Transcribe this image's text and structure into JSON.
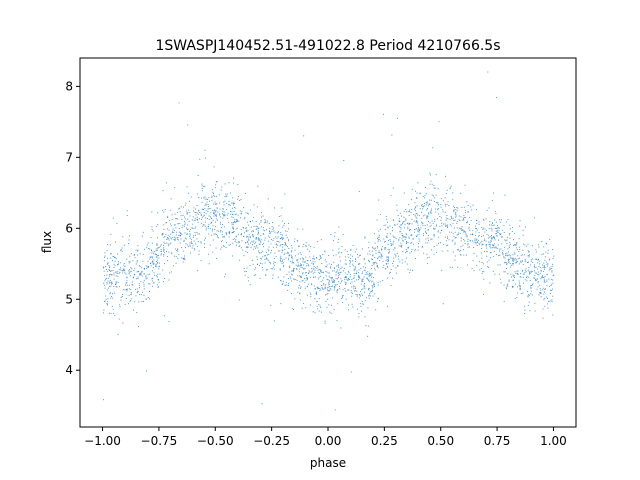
{
  "chart_data": {
    "type": "scatter",
    "title": "1SWASPJ140452.51-491022.8 Period 4210766.5s",
    "xlabel": "phase",
    "ylabel": "flux",
    "xlim": [
      -1.1,
      1.1
    ],
    "ylim": [
      3.2,
      8.4
    ],
    "xticks": [
      -1.0,
      -0.75,
      -0.5,
      -0.25,
      0.0,
      0.25,
      0.5,
      0.75,
      1.0
    ],
    "xtick_labels": [
      "−1.00",
      "−0.75",
      "−0.50",
      "−0.25",
      "0.00",
      "0.25",
      "0.50",
      "0.75",
      "1.00"
    ],
    "yticks": [
      4,
      5,
      6,
      7,
      8
    ],
    "ytick_labels": [
      "4",
      "5",
      "6",
      "7",
      "8"
    ],
    "marker_color": "#1f77b4",
    "grid": false,
    "light_curve_profile": {
      "phase": [
        0.0,
        0.05,
        0.1,
        0.15,
        0.2,
        0.25,
        0.3,
        0.35,
        0.4,
        0.45,
        0.5,
        0.55,
        0.6,
        0.65,
        0.7,
        0.75,
        0.8,
        0.85,
        0.9,
        0.95,
        1.0
      ],
      "mean_flux": [
        5.3,
        5.35,
        5.3,
        5.25,
        5.4,
        5.7,
        5.85,
        5.95,
        6.05,
        6.2,
        6.2,
        6.1,
        6.0,
        5.85,
        5.8,
        5.8,
        5.7,
        5.4,
        5.35,
        5.3,
        5.3
      ],
      "spread": 0.55
    }
  }
}
